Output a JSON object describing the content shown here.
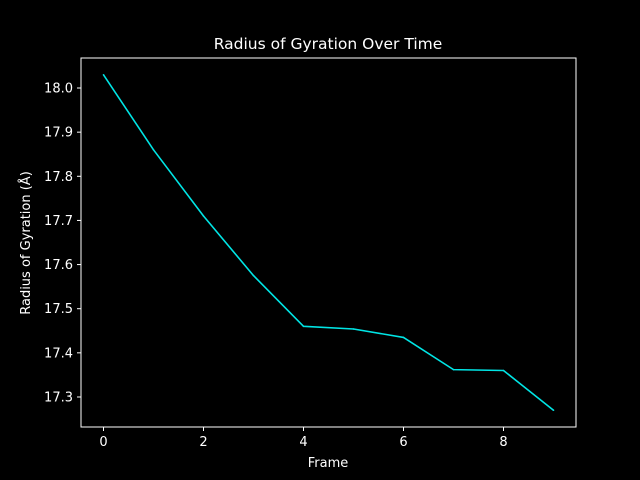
{
  "chart_data": {
    "type": "line",
    "title": "Radius of Gyration Over Time",
    "xlabel": "Frame",
    "ylabel": "Radius of Gyration (Å)",
    "xlim": [
      -0.45,
      9.45
    ],
    "ylim": [
      17.232,
      18.068
    ],
    "x_ticks": [
      0,
      2,
      4,
      6,
      8
    ],
    "y_ticks": [
      17.3,
      17.4,
      17.5,
      17.6,
      17.7,
      17.8,
      17.9,
      18.0
    ],
    "grid": false,
    "series": [
      {
        "color": "#00e5e5",
        "x": [
          0,
          1,
          2,
          3,
          4,
          5,
          6,
          7,
          8,
          9
        ],
        "values": [
          18.03,
          17.86,
          17.71,
          17.575,
          17.46,
          17.454,
          17.435,
          17.362,
          17.36,
          17.27
        ]
      }
    ],
    "colors": {
      "background": "#000000",
      "foreground": "#ffffff"
    }
  }
}
